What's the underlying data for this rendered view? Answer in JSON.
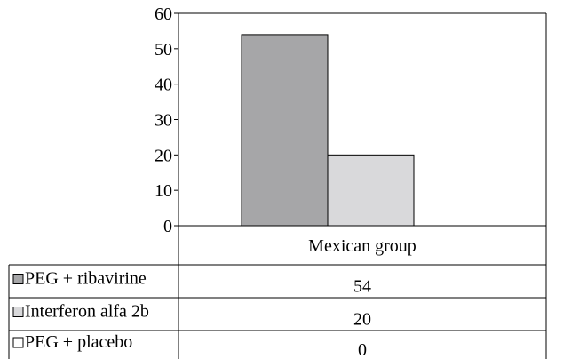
{
  "chart_data": {
    "type": "bar",
    "categories": [
      "Mexican group"
    ],
    "series": [
      {
        "name": "PEG + ribavirine",
        "values": [
          54
        ],
        "color": "#a6a6a8"
      },
      {
        "name": "Interferon alfa 2b",
        "values": [
          20
        ],
        "color": "#d9d9db"
      },
      {
        "name": "PEG + placebo",
        "values": [
          0
        ],
        "color": "#ffffff"
      }
    ],
    "ylim": [
      0,
      60
    ],
    "yticks": [
      "0",
      "10",
      "20",
      "30",
      "40",
      "50",
      "60"
    ],
    "title": "",
    "xlabel": "",
    "ylabel": "",
    "legend": "data table below plot",
    "grid": false
  }
}
